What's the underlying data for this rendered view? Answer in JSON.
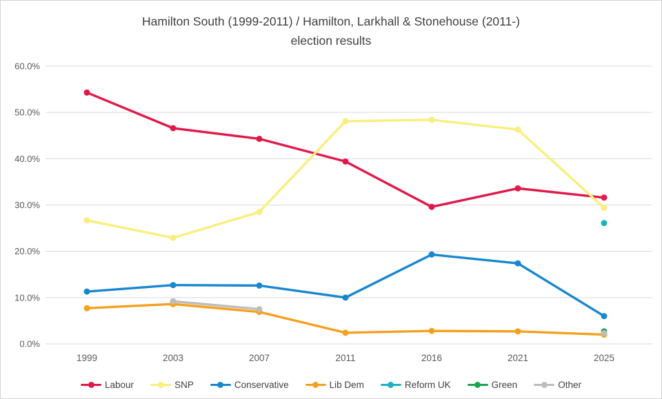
{
  "frame": {
    "background": "#ffffff",
    "border_color": "#d2d2d2"
  },
  "title": {
    "line1": "Hamilton South (1999-2011) / Hamilton, Larkhall & Stonehouse (2011-)",
    "line2": "election results",
    "color": "#3f3f3f"
  },
  "chart_data": {
    "type": "line",
    "title": "Hamilton South (1999-2011) / Hamilton, Larkhall & Stonehouse (2011-) election results",
    "categories": [
      "1999",
      "2003",
      "2007",
      "2011",
      "2016",
      "2021",
      "2025"
    ],
    "series": [
      {
        "name": "Labour",
        "color": "#e0194b",
        "values": [
          54.3,
          46.6,
          44.3,
          39.4,
          29.6,
          33.6,
          31.6
        ]
      },
      {
        "name": "SNP",
        "color": "#faee7d",
        "values": [
          26.7,
          22.9,
          28.5,
          48.1,
          48.4,
          46.3,
          29.4
        ]
      },
      {
        "name": "Conservative",
        "color": "#1886d0",
        "values": [
          11.3,
          12.7,
          12.6,
          10.0,
          19.3,
          17.4,
          6.0
        ]
      },
      {
        "name": "Lib Dem",
        "color": "#f5a01e",
        "values": [
          7.7,
          8.6,
          6.9,
          2.4,
          2.8,
          2.7,
          2.0
        ]
      },
      {
        "name": "Reform UK",
        "color": "#1eb0c3",
        "values": [
          null,
          null,
          null,
          null,
          null,
          null,
          26.1
        ]
      },
      {
        "name": "Green",
        "color": "#18a651",
        "values": [
          null,
          null,
          null,
          null,
          null,
          null,
          2.7
        ]
      },
      {
        "name": "Other",
        "color": "#bdbdbd",
        "values": [
          null,
          9.2,
          7.5,
          null,
          null,
          null,
          2.3
        ]
      }
    ],
    "ylim": [
      0,
      60
    ],
    "ytick_labels": [
      "0.0%",
      "10.0%",
      "20.0%",
      "30.0%",
      "40.0%",
      "50.0%",
      "60.0%"
    ],
    "xlabel": "",
    "ylabel": "",
    "grid": true,
    "gridline_color": "#d9d9d9",
    "axis_label_color": "#595959",
    "legend_position": "bottom"
  }
}
